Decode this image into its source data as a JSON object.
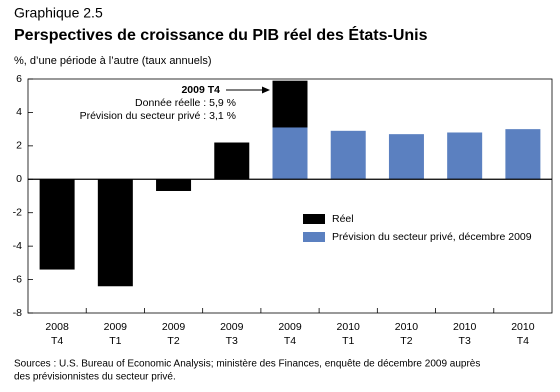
{
  "chart_data": {
    "type": "bar",
    "supertitle": "Graphique 2.5",
    "title": "Perspectives de croissance du PIB réel des États-Unis",
    "subtitle": "%, d’une période à l’autre (taux annuels)",
    "categories": [
      [
        "2008",
        "T4"
      ],
      [
        "2009",
        "T1"
      ],
      [
        "2009",
        "T2"
      ],
      [
        "2009",
        "T3"
      ],
      [
        "2009",
        "T4"
      ],
      [
        "2010",
        "T1"
      ],
      [
        "2010",
        "T2"
      ],
      [
        "2010",
        "T3"
      ],
      [
        "2010",
        "T4"
      ]
    ],
    "series": [
      {
        "name": "Réel",
        "color": "#000000",
        "values": [
          -5.4,
          -6.4,
          -0.7,
          2.2,
          5.9,
          null,
          null,
          null,
          null
        ]
      },
      {
        "name": "Prévision du secteur privé, décembre 2009",
        "color": "#5b80c0",
        "values": [
          null,
          null,
          null,
          null,
          3.1,
          2.9,
          2.7,
          2.8,
          3.0
        ]
      }
    ],
    "ylim": [
      -8,
      6
    ],
    "yticks": [
      -8,
      -6,
      -4,
      -2,
      0,
      2,
      4,
      6
    ],
    "annotation": {
      "title": "2009 T4",
      "lines": [
        "Donnée réelle : 5,9 %",
        "Prévision du secteur privé : 3,1 %"
      ]
    },
    "legend": "bottom-right",
    "source": [
      "Sources : U.S. Bureau of Economic Analysis; ministère des Finances, enquête de décembre 2009 auprès",
      "des prévisionnistes du secteur privé."
    ]
  }
}
